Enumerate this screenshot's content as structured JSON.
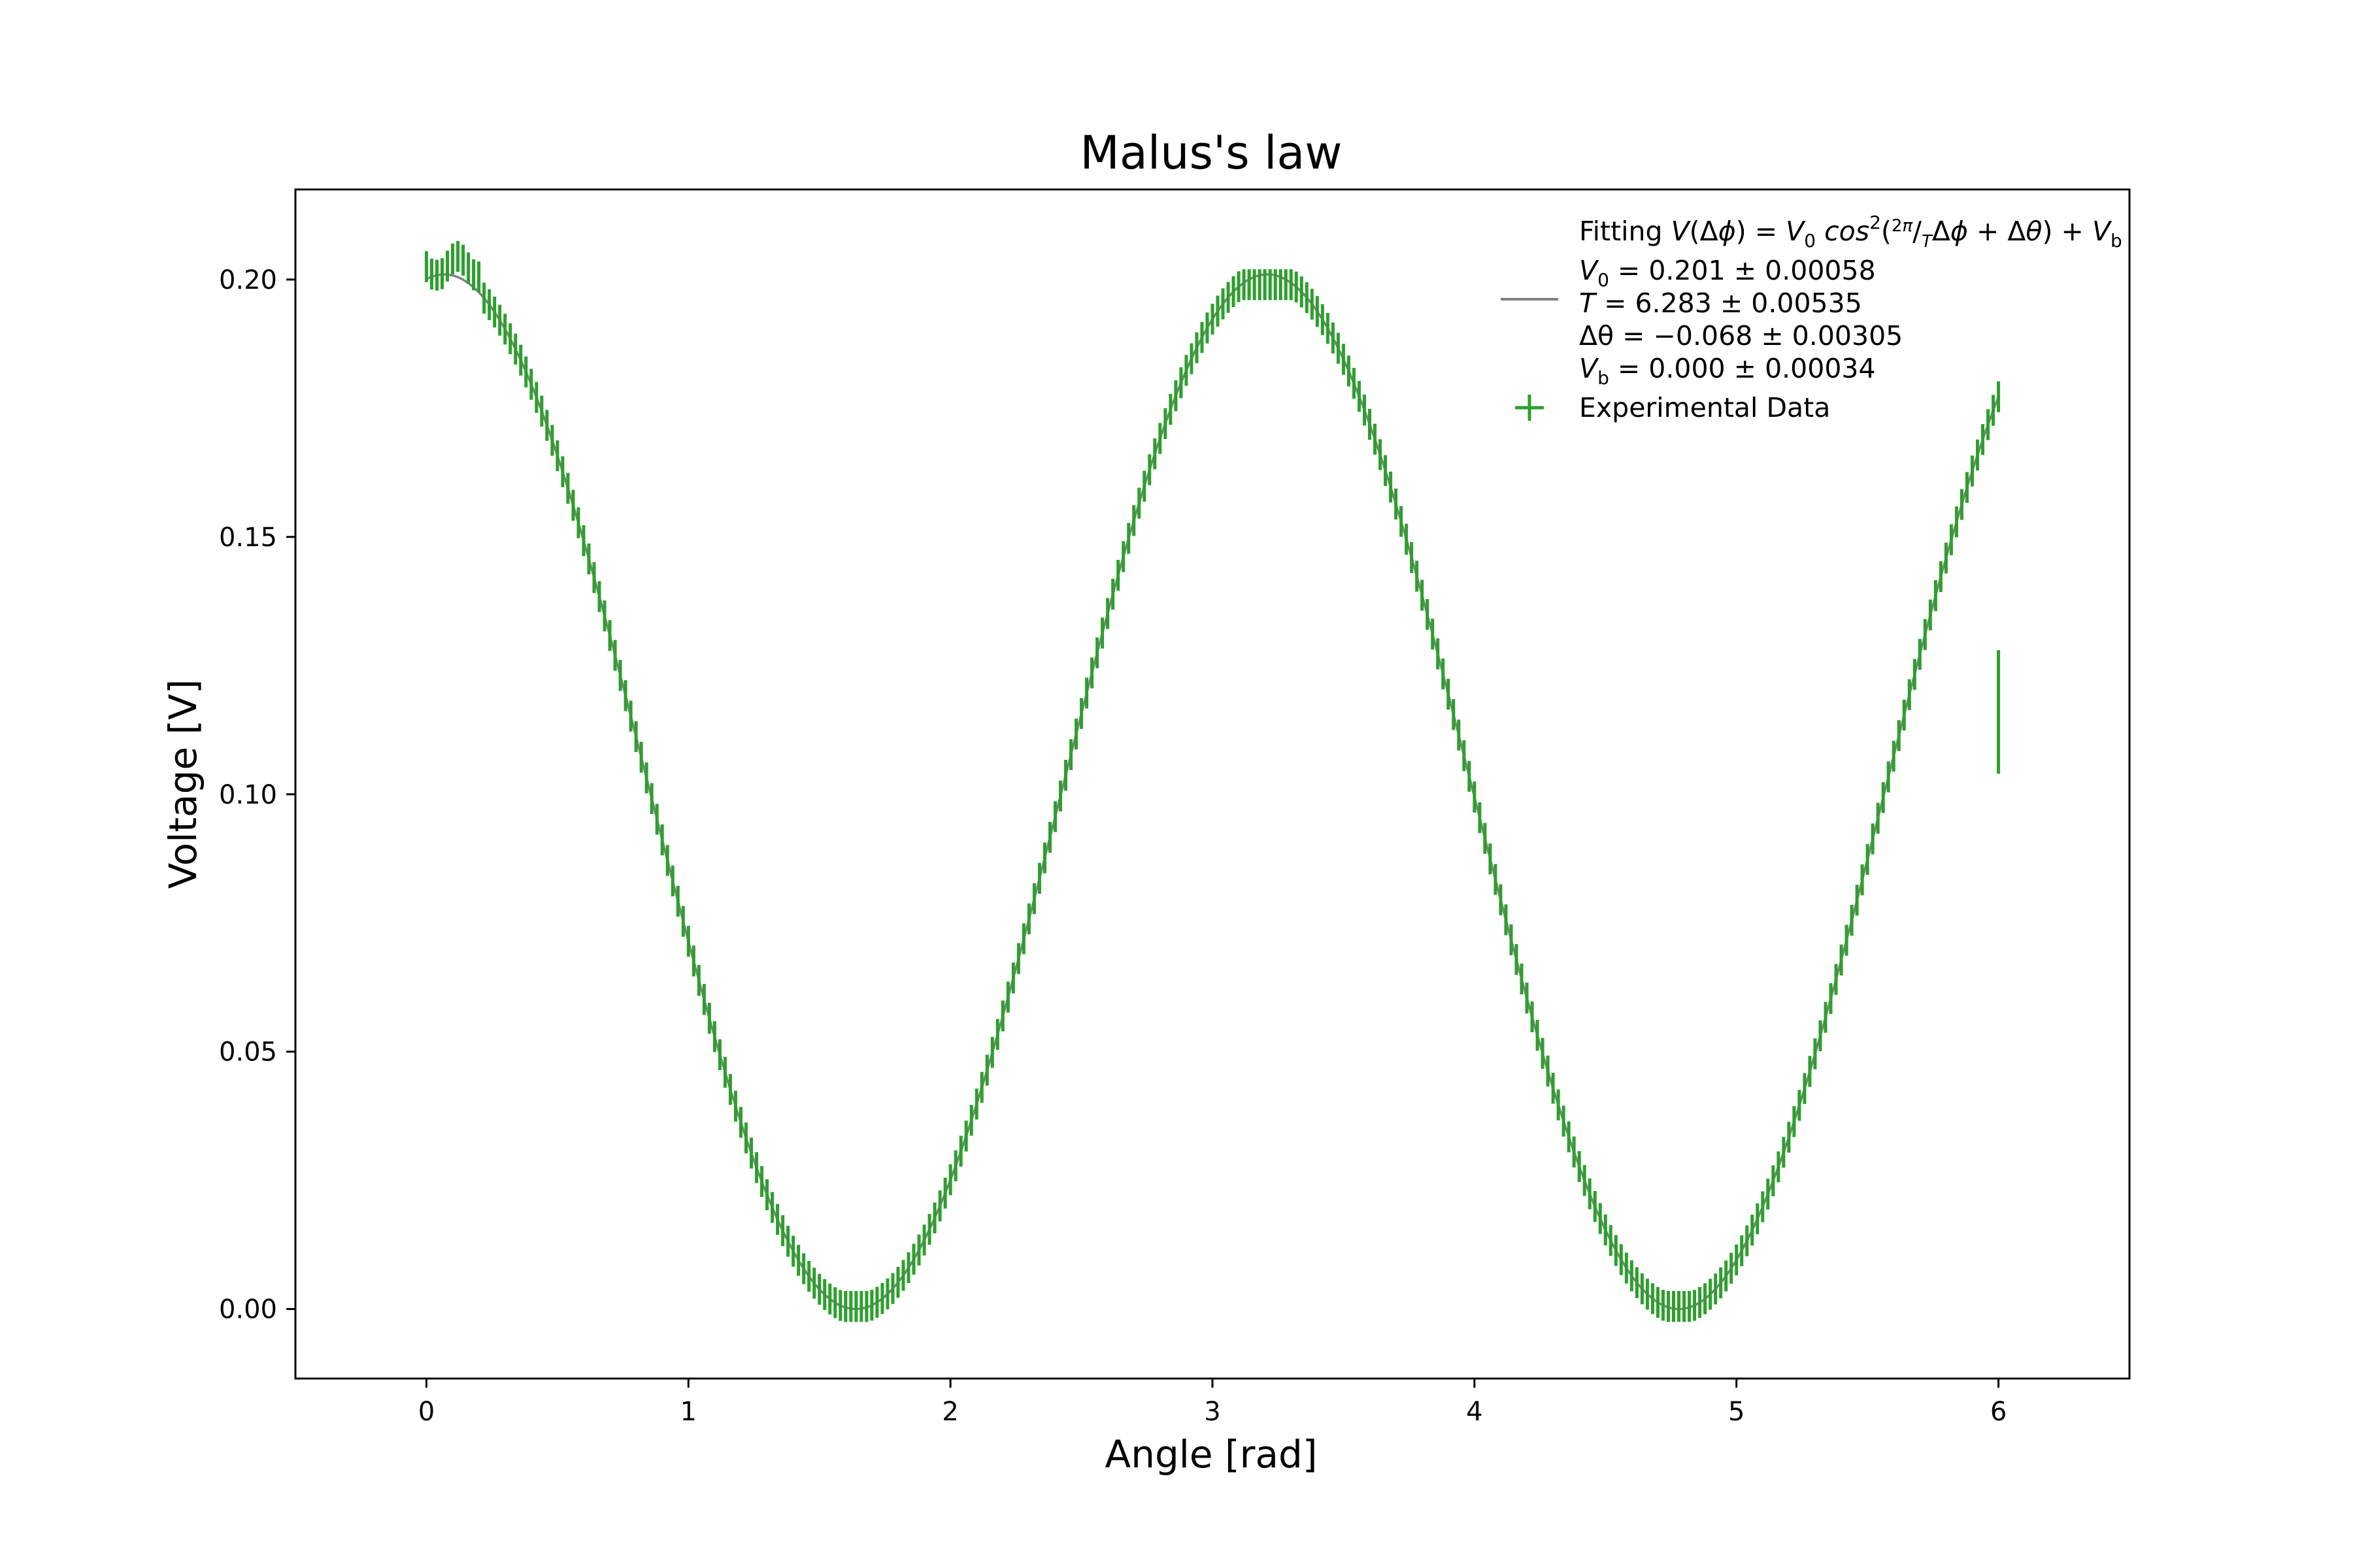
{
  "chart_data": {
    "type": "scatter",
    "title": "Malus's law",
    "xlabel": "Angle [rad]",
    "ylabel": "Voltage [V]",
    "xlim": [
      -0.5,
      6.5
    ],
    "ylim": [
      -0.0135,
      0.2175
    ],
    "x_ticks": [
      0,
      1,
      2,
      3,
      4,
      5,
      6
    ],
    "x_tick_labels": [
      "0",
      "1",
      "2",
      "3",
      "4",
      "5",
      "6"
    ],
    "y_ticks": [
      0.0,
      0.05,
      0.1,
      0.15,
      0.2
    ],
    "y_tick_labels": [
      "0.00",
      "0.05",
      "0.10",
      "0.15",
      "0.20"
    ],
    "grid": false,
    "legend_position": "top-right",
    "colors": {
      "data": "#2ca02c",
      "fit": "#808080"
    },
    "fit": {
      "model": "V0*cos^2(2*pi/T*x + dtheta) + Vb",
      "V0": 0.201,
      "T": 6.283,
      "dtheta": -0.068,
      "Vb": 0.0,
      "x_range": [
        0.0,
        6.0
      ]
    },
    "legend": {
      "fit_header": "Fitting ",
      "fit_lines": [
        {
          "var": "V",
          "sub": "0",
          "rel": " = ",
          "value": "0.201",
          "pm": " ± ",
          "err": "0.00058"
        },
        {
          "var": "T",
          "sub": "",
          "rel": " = ",
          "value": "6.283",
          "pm": " ± ",
          "err": "0.00535"
        },
        {
          "var": "Δθ",
          "sub": "",
          "rel": " = −",
          "value": "0.068",
          "pm": " ± ",
          "err": "0.00305"
        },
        {
          "var": "V",
          "sub": "b",
          "rel": " = ",
          "value": "0.000",
          "pm": " ± ",
          "err": "0.00034"
        }
      ],
      "data_label": "Experimental Data"
    },
    "series": [
      {
        "name": "Experimental Data",
        "sampling": {
          "x_start": 0.0,
          "x_end": 6.0,
          "step": 0.02
        },
        "y_error": 0.003,
        "values_rule": "fit model evaluated at each x, with a plateau near 0.2025 for x <= 0.2, minima near 0.0005, peak near 0.199",
        "outlier_points": [
          {
            "x": 6.0,
            "y": 0.116,
            "y_error": 0.012
          }
        ]
      }
    ]
  }
}
